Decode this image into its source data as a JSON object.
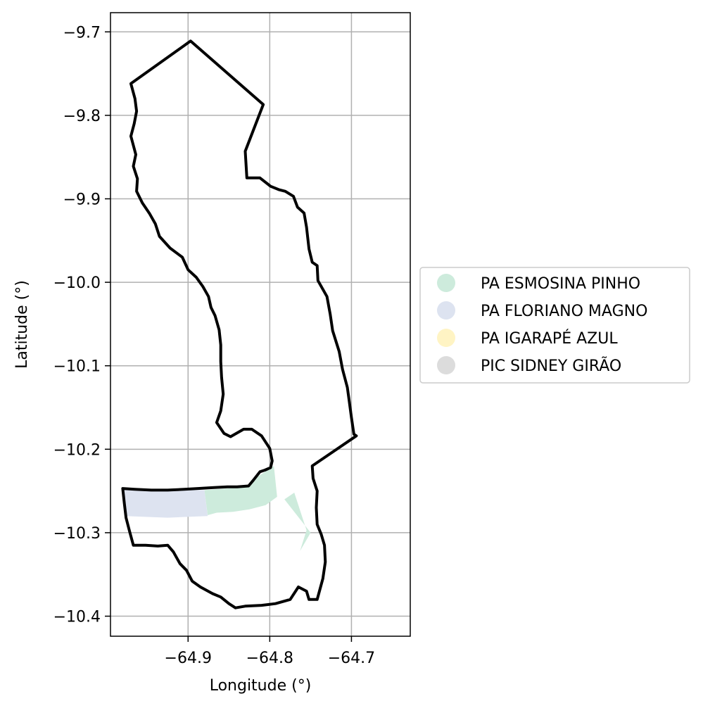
{
  "chart_data": {
    "type": "map",
    "xlabel": "Longitude (°)",
    "ylabel": "Latitude (°)",
    "xlim": [
      -64.995,
      -64.628
    ],
    "ylim": [
      -10.424,
      -9.677
    ],
    "x_ticks": [
      {
        "value": -64.9,
        "label": "−64.9"
      },
      {
        "value": -64.8,
        "label": "−64.8"
      },
      {
        "value": -64.7,
        "label": "−64.7"
      }
    ],
    "y_ticks": [
      {
        "value": -9.7,
        "label": "−9.7"
      },
      {
        "value": -9.8,
        "label": "−9.8"
      },
      {
        "value": -9.9,
        "label": "−9.9"
      },
      {
        "value": -10.0,
        "label": "−10.0"
      },
      {
        "value": -10.1,
        "label": "−10.1"
      },
      {
        "value": -10.2,
        "label": "−10.2"
      },
      {
        "value": -10.3,
        "label": "−10.3"
      },
      {
        "value": -10.4,
        "label": "−10.4"
      }
    ],
    "grid": true,
    "legend_position": "right",
    "legend": [
      {
        "label": "PA ESMOSINA PINHO",
        "color": "#cdebdc"
      },
      {
        "label": "PA FLORIANO MAGNO",
        "color": "#dde3f0"
      },
      {
        "label": "PA IGARAPÉ AZUL",
        "color": "#fff4c4"
      },
      {
        "label": "PIC SIDNEY GIRÃO",
        "color": "#dcdcdc"
      }
    ],
    "boundary": [
      [
        -64.897,
        -9.711
      ],
      [
        -64.808,
        -9.787
      ],
      [
        -64.83,
        -9.843
      ],
      [
        -64.828,
        -9.875
      ],
      [
        -64.812,
        -9.875
      ],
      [
        -64.799,
        -9.885
      ],
      [
        -64.789,
        -9.889
      ],
      [
        -64.781,
        -9.891
      ],
      [
        -64.771,
        -9.897
      ],
      [
        -64.766,
        -9.91
      ],
      [
        -64.758,
        -9.917
      ],
      [
        -64.755,
        -9.934
      ],
      [
        -64.752,
        -9.96
      ],
      [
        -64.748,
        -9.976
      ],
      [
        -64.742,
        -9.98
      ],
      [
        -64.741,
        -9.998
      ],
      [
        -64.73,
        -10.017
      ],
      [
        -64.726,
        -10.038
      ],
      [
        -64.723,
        -10.058
      ],
      [
        -64.715,
        -10.083
      ],
      [
        -64.711,
        -10.104
      ],
      [
        -64.705,
        -10.126
      ],
      [
        -64.703,
        -10.14
      ],
      [
        -64.7,
        -10.162
      ],
      [
        -64.697,
        -10.182
      ],
      [
        -64.694,
        -10.184
      ],
      [
        -64.748,
        -10.22
      ],
      [
        -64.747,
        -10.235
      ],
      [
        -64.742,
        -10.25
      ],
      [
        -64.743,
        -10.27
      ],
      [
        -64.742,
        -10.29
      ],
      [
        -64.737,
        -10.302
      ],
      [
        -64.733,
        -10.315
      ],
      [
        -64.732,
        -10.335
      ],
      [
        -64.735,
        -10.355
      ],
      [
        -64.742,
        -10.38
      ],
      [
        -64.752,
        -10.38
      ],
      [
        -64.755,
        -10.37
      ],
      [
        -64.765,
        -10.365
      ],
      [
        -64.775,
        -10.38
      ],
      [
        -64.793,
        -10.385
      ],
      [
        -64.81,
        -10.387
      ],
      [
        -64.83,
        -10.388
      ],
      [
        -64.842,
        -10.39
      ],
      [
        -64.85,
        -10.385
      ],
      [
        -64.86,
        -10.377
      ],
      [
        -64.87,
        -10.373
      ],
      [
        -64.885,
        -10.365
      ],
      [
        -64.895,
        -10.358
      ],
      [
        -64.902,
        -10.345
      ],
      [
        -64.91,
        -10.337
      ],
      [
        -64.918,
        -10.323
      ],
      [
        -64.925,
        -10.315
      ],
      [
        -64.937,
        -10.316
      ],
      [
        -64.952,
        -10.315
      ],
      [
        -64.967,
        -10.315
      ],
      [
        -64.972,
        -10.297
      ],
      [
        -64.976,
        -10.282
      ],
      [
        -64.978,
        -10.265
      ],
      [
        -64.98,
        -10.247
      ],
      [
        -64.965,
        -10.248
      ],
      [
        -64.945,
        -10.249
      ],
      [
        -64.925,
        -10.249
      ],
      [
        -64.905,
        -10.248
      ],
      [
        -64.888,
        -10.247
      ],
      [
        -64.87,
        -10.246
      ],
      [
        -64.852,
        -10.245
      ],
      [
        -64.84,
        -10.245
      ],
      [
        -64.826,
        -10.244
      ],
      [
        -64.82,
        -10.237
      ],
      [
        -64.812,
        -10.227
      ],
      [
        -64.806,
        -10.225
      ],
      [
        -64.799,
        -10.222
      ],
      [
        -64.797,
        -10.214
      ],
      [
        -64.8,
        -10.199
      ],
      [
        -64.81,
        -10.184
      ],
      [
        -64.822,
        -10.176
      ],
      [
        -64.832,
        -10.176
      ],
      [
        -64.848,
        -10.185
      ],
      [
        -64.856,
        -10.181
      ],
      [
        -64.865,
        -10.168
      ],
      [
        -64.86,
        -10.154
      ],
      [
        -64.857,
        -10.134
      ],
      [
        -64.859,
        -10.114
      ],
      [
        -64.86,
        -10.095
      ],
      [
        -64.86,
        -10.075
      ],
      [
        -64.862,
        -10.057
      ],
      [
        -64.867,
        -10.04
      ],
      [
        -64.872,
        -10.03
      ],
      [
        -64.875,
        -10.017
      ],
      [
        -64.882,
        -10.005
      ],
      [
        -64.89,
        -9.994
      ],
      [
        -64.9,
        -9.985
      ],
      [
        -64.907,
        -9.97
      ],
      [
        -64.922,
        -9.959
      ],
      [
        -64.935,
        -9.945
      ],
      [
        -64.94,
        -9.93
      ],
      [
        -64.947,
        -9.918
      ],
      [
        -64.956,
        -9.905
      ],
      [
        -64.963,
        -9.891
      ],
      [
        -64.962,
        -9.876
      ],
      [
        -64.967,
        -9.861
      ],
      [
        -64.964,
        -9.847
      ],
      [
        -64.97,
        -9.825
      ],
      [
        -64.966,
        -9.81
      ],
      [
        -64.963,
        -9.795
      ],
      [
        -64.965,
        -9.78
      ],
      [
        -64.97,
        -9.762
      ]
    ],
    "areas": [
      {
        "name": "PA FLORIANO MAGNO",
        "polygons": [
          [
            [
              -64.978,
              -10.249
            ],
            [
              -64.88,
              -10.249
            ],
            [
              -64.876,
              -10.28
            ],
            [
              -64.925,
              -10.282
            ],
            [
              -64.977,
              -10.28
            ]
          ]
        ]
      },
      {
        "name": "PA ESMOSINA PINHO",
        "polygons": [
          [
            [
              -64.88,
              -10.249
            ],
            [
              -64.825,
              -10.245
            ],
            [
              -64.815,
              -10.233
            ],
            [
              -64.795,
              -10.22
            ],
            [
              -64.791,
              -10.257
            ],
            [
              -64.805,
              -10.267
            ],
            [
              -64.825,
              -10.272
            ],
            [
              -64.845,
              -10.275
            ],
            [
              -64.865,
              -10.276
            ],
            [
              -64.876,
              -10.279
            ]
          ],
          [
            [
              -64.782,
              -10.26
            ],
            [
              -64.77,
              -10.252
            ],
            [
              -64.755,
              -10.297
            ],
            [
              -64.763,
              -10.322
            ],
            [
              -64.75,
              -10.3
            ]
          ]
        ]
      }
    ]
  }
}
